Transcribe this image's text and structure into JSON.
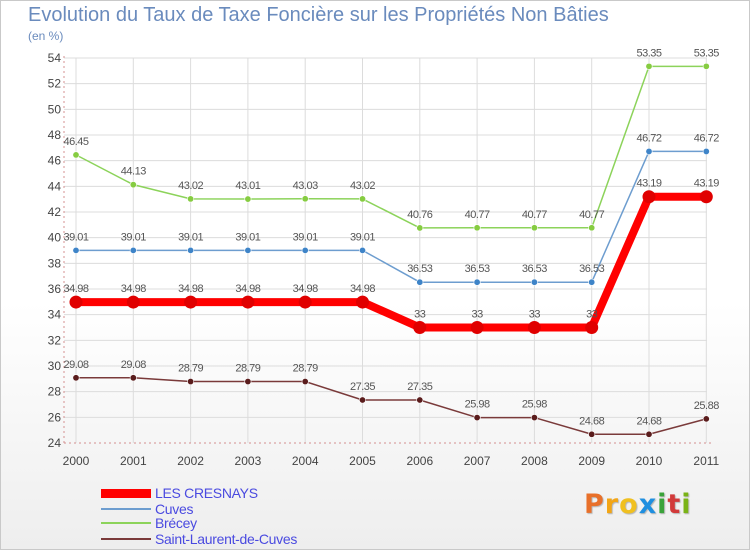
{
  "header": {
    "title": "Evolution du Taux de Taxe Foncière sur les Propriétés Non Bâties",
    "subtitle": "(en %)"
  },
  "brand": {
    "text": "Proxiti",
    "colors": [
      "#e8702a",
      "#f2a516",
      "#f0c020",
      "#1f8fe0",
      "#3aa33a",
      "#d23a3a",
      "#7ab317"
    ]
  },
  "chart_data": {
    "type": "line",
    "title": "Evolution du Taux de Taxe Foncière sur les Propriétés Non Bâties",
    "ylabel": "(en %)",
    "xlabel": "",
    "categories": [
      "2000",
      "2001",
      "2002",
      "2003",
      "2004",
      "2005",
      "2006",
      "2007",
      "2008",
      "2009",
      "2010",
      "2011"
    ],
    "ylim": [
      24,
      54
    ],
    "yticks": [
      24,
      26,
      28,
      30,
      32,
      34,
      36,
      38,
      40,
      42,
      44,
      46,
      48,
      50,
      52,
      54
    ],
    "grid": true,
    "legend_position": "bottom-left",
    "series": [
      {
        "name": "Brécey",
        "color": "#8cd35a",
        "marker": "#86cc41",
        "values": [
          46.45,
          44.13,
          43.02,
          43.01,
          43.03,
          43.02,
          40.76,
          40.77,
          40.77,
          40.77,
          53.35,
          53.35
        ],
        "labels": [
          "46.45",
          "44.13",
          "43.02",
          "43.01",
          "43.03",
          "43.02",
          "40.76",
          "40.77",
          "40.77",
          "40.77",
          "53.35",
          "53.35"
        ]
      },
      {
        "name": "Cuves",
        "color": "#6d9dcf",
        "marker": "#3e84c8",
        "values": [
          39.01,
          39.01,
          39.01,
          39.01,
          39.01,
          39.01,
          36.53,
          36.53,
          36.53,
          36.53,
          46.72,
          46.72
        ],
        "labels": [
          "39.01",
          "39.01",
          "39.01",
          "39.01",
          "39.01",
          "39.01",
          "36.53",
          "36.53",
          "36.53",
          "36.53",
          "46.72",
          "46.72"
        ]
      },
      {
        "name": "LES CRESNAYS",
        "color": "#ff0000",
        "marker": "#e00000",
        "values": [
          34.98,
          34.98,
          34.98,
          34.98,
          34.98,
          34.98,
          33,
          33,
          33,
          33,
          43.19,
          43.19
        ],
        "labels": [
          "34.98",
          "34.98",
          "34.98",
          "34.98",
          "34.98",
          "34.98",
          "33",
          "33",
          "33",
          "33",
          "43.19",
          "43.19"
        ]
      },
      {
        "name": "Saint-Laurent-de-Cuves",
        "color": "#7a3a3a",
        "marker": "#5a1c1c",
        "values": [
          29.08,
          29.08,
          28.79,
          28.79,
          28.79,
          27.35,
          27.35,
          25.98,
          25.98,
          24.68,
          24.68,
          25.88
        ],
        "labels": [
          "29.08",
          "29.08",
          "28.79",
          "28.79",
          "28.79",
          "27.35",
          "27.35",
          "25.98",
          "25.98",
          "24.68",
          "24.68",
          "25.88"
        ]
      }
    ],
    "legend": [
      "LES CRESNAYS",
      "Cuves",
      "Brécey",
      "Saint-Laurent-de-Cuves"
    ]
  }
}
